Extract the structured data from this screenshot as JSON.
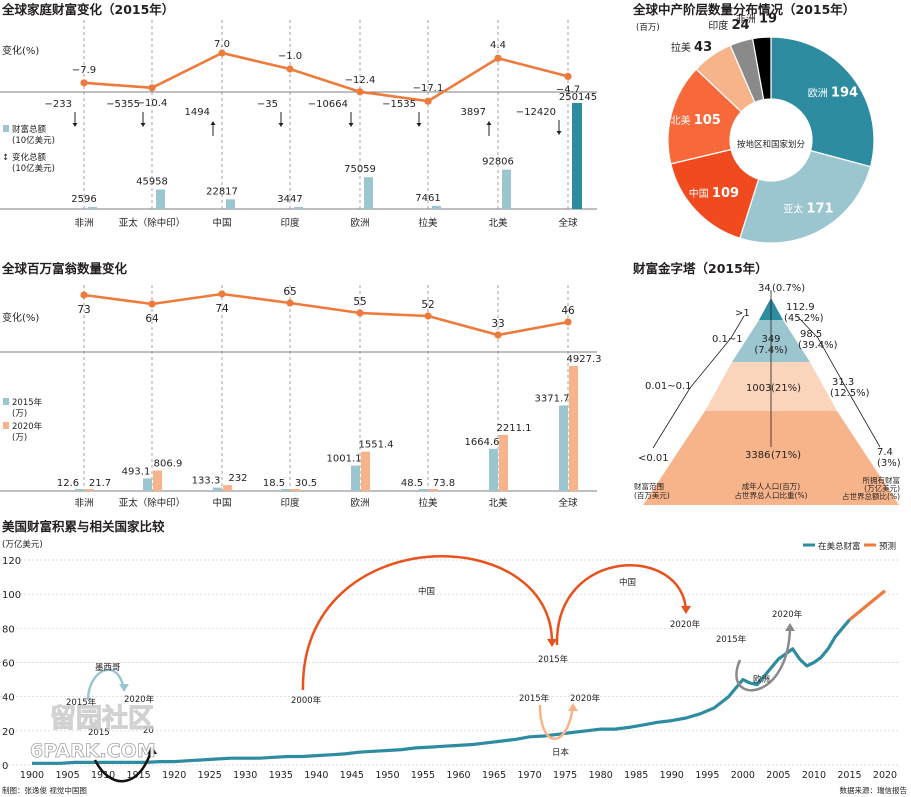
{
  "colors": {
    "orange": "#ee7a3b",
    "teal_light": "#9cc6cf",
    "teal_dark": "#2e8ca0",
    "peach": "#f7b48a",
    "dashed": "#8a8a8a",
    "text": "#231f20"
  },
  "chart_data": [
    {
      "id": "household-wealth",
      "type": "bar",
      "title": "全球家庭财富变化（2015年）",
      "categories": [
        "非洲",
        "亚太（除中印）",
        "中国",
        "印度",
        "欧洲",
        "拉美",
        "北美",
        "全球"
      ],
      "line_label": "变化(%)",
      "change_pct": [
        -7.9,
        -10.4,
        7.0,
        -1.0,
        -12.4,
        -17.1,
        4.4,
        -4.7
      ],
      "change_pct_text": [
        "−7.9",
        "−10.4",
        "7.0",
        "−1.0",
        "−12.4",
        "−17.1",
        "4.4",
        "−4.7"
      ],
      "wealth_total": [
        2596,
        45958,
        22817,
        3447,
        75059,
        7461,
        92806,
        250145
      ],
      "wealth_change": [
        -233,
        -5355,
        1494,
        -35,
        -10664,
        -1535,
        3897,
        -12420
      ],
      "wealth_change_text": [
        "−233",
        "−5355",
        "1494",
        "−35",
        "−10664",
        "−1535",
        "3897",
        "−12420"
      ],
      "legend": {
        "total": "财富总额",
        "total_unit": "(10亿美元)",
        "change": "变化总额",
        "change_unit": "(10亿美元)"
      }
    },
    {
      "id": "middle-class",
      "type": "pie",
      "title": "全球中产阶层数量分布情况（2015年）",
      "unit": "(百万)",
      "center_label": "按地区和国家划分",
      "slices": [
        {
          "label": "欧洲",
          "value": 194,
          "color": "#2e8ca0"
        },
        {
          "label": "亚太",
          "value": 171,
          "color": "#9cc6cf"
        },
        {
          "label": "中国",
          "value": 109,
          "color": "#f04a1e"
        },
        {
          "label": "北美",
          "value": 105,
          "color": "#f7693a"
        },
        {
          "label": "拉美",
          "value": 43,
          "color": "#f7b48a"
        },
        {
          "label": "印度",
          "value": 24,
          "color": "#8a8a8a"
        },
        {
          "label": "非洲",
          "value": 19,
          "color": "#000000"
        }
      ]
    },
    {
      "id": "millionaires",
      "type": "bar",
      "title": "全球百万富翁数量变化",
      "categories": [
        "非洲",
        "亚太（除中印）",
        "中国",
        "印度",
        "欧洲",
        "拉美",
        "北美",
        "全球"
      ],
      "line_label": "变化(%)",
      "change_pct": [
        73,
        64,
        74,
        65,
        55,
        52,
        33,
        46
      ],
      "series": [
        {
          "name": "2015年",
          "unit": "(万)",
          "values": [
            12.6,
            493.1,
            133.3,
            18.5,
            1001.1,
            48.5,
            1664.6,
            3371.7
          ],
          "labels": [
            "12.6",
            "493.1",
            "133.3",
            "18.5",
            "1001.1",
            "48.5",
            "1664.6",
            "3371.7"
          ]
        },
        {
          "name": "2020年",
          "unit": "(万)",
          "values": [
            21.7,
            806.9,
            232,
            30.5,
            1551.4,
            73.8,
            2211.1,
            4927.3
          ],
          "labels": [
            "21.7",
            "806.9",
            "232",
            "30.5",
            "1551.4",
            "73.8",
            "2211.1",
            "4927.3"
          ]
        }
      ]
    },
    {
      "id": "pyramid",
      "type": "table",
      "title": "财富金字塔（2015年）",
      "left_labels": [
        ">1",
        "0.1~1",
        "0.01~0.1",
        "<0.01"
      ],
      "inner_labels": [
        {
          "value": "34",
          "pct": "(0.7%)"
        },
        {
          "value": "349",
          "pct": "(7.4%)"
        },
        {
          "value": "1003",
          "pct": "(21%)"
        },
        {
          "value": "3386",
          "pct": "(71%)"
        }
      ],
      "right_labels": [
        {
          "value": "112.9",
          "pct": "(45.2%)"
        },
        {
          "value": "98.5",
          "pct": "(39.4%)"
        },
        {
          "value": "31.3",
          "pct": "(12.5%)"
        },
        {
          "value": "7.4",
          "pct": "(3%)"
        }
      ],
      "footer_left": [
        "财富范围",
        "(百万美元)"
      ],
      "footer_mid": [
        "成年人人口(百万)",
        "占世界总人口比重(%)"
      ],
      "footer_right": [
        "所拥有财富",
        "(万亿美元)",
        "占世界总额比(%)"
      ]
    },
    {
      "id": "us-wealth",
      "type": "line",
      "title": "美国财富积累与相关国家比较",
      "ylabel": "(万亿美元)",
      "ylim": [
        0,
        120
      ],
      "yticks": [
        0,
        20,
        40,
        60,
        80,
        100,
        120
      ],
      "xlim": [
        1900,
        2020
      ],
      "xticks": [
        1900,
        1905,
        1910,
        1915,
        1920,
        1925,
        1930,
        1935,
        1940,
        1945,
        1950,
        1955,
        1960,
        1965,
        1970,
        1975,
        1980,
        1985,
        1990,
        1995,
        2000,
        2005,
        2010,
        2015,
        2020
      ],
      "series": [
        {
          "name": "在美总财富",
          "color": "#2e8ca0",
          "x": [
            1900,
            1902,
            1904,
            1906,
            1908,
            1910,
            1912,
            1914,
            1916,
            1918,
            1920,
            1922,
            1924,
            1926,
            1928,
            1930,
            1932,
            1934,
            1936,
            1938,
            1940,
            1942,
            1944,
            1946,
            1948,
            1950,
            1952,
            1954,
            1956,
            1958,
            1960,
            1962,
            1964,
            1966,
            1968,
            1970,
            1972,
            1974,
            1976,
            1978,
            1980,
            1982,
            1984,
            1986,
            1988,
            1990,
            1992,
            1994,
            1996,
            1998,
            1999,
            2000,
            2001,
            2002,
            2003,
            2004,
            2005,
            2006,
            2007,
            2008,
            2009,
            2010,
            2011,
            2012,
            2013,
            2014,
            2015
          ],
          "values": [
            1,
            1,
            1,
            1.5,
            1.5,
            1.5,
            1.5,
            1.5,
            1.5,
            2,
            2,
            2.5,
            3,
            3.5,
            4,
            4,
            4,
            4.5,
            5,
            5,
            5.5,
            6,
            6.5,
            7.5,
            8,
            8.5,
            9,
            10,
            10.5,
            11,
            11.5,
            12,
            13,
            14,
            15,
            16.5,
            17,
            18,
            19,
            20,
            21,
            21,
            22,
            23.5,
            25,
            26,
            27.5,
            30,
            33.5,
            40,
            45,
            50,
            48,
            47,
            52,
            57,
            62,
            65,
            68,
            62,
            58,
            60,
            63,
            68,
            75,
            80,
            85
          ]
        },
        {
          "name": "预测",
          "color": "#ee7a3b",
          "x": [
            2015,
            2020
          ],
          "values": [
            85,
            102
          ]
        }
      ],
      "annotations": [
        {
          "text": "墨西哥"
        },
        {
          "text": "2015年"
        },
        {
          "text": "2020年"
        },
        {
          "text": "中国"
        },
        {
          "text": "2000年"
        },
        {
          "text": "2015年"
        },
        {
          "text": "中国"
        },
        {
          "text": "2020年"
        },
        {
          "text": "2015年"
        },
        {
          "text": "2020年"
        },
        {
          "text": "日本"
        },
        {
          "text": "2015年"
        },
        {
          "text": "2020年"
        },
        {
          "text": "欧洲"
        },
        {
          "text": "2015"
        },
        {
          "text": "20"
        }
      ]
    }
  ],
  "footer": {
    "left": "制图：张逸俊  视觉中国图",
    "right": "数据来源：瑞信报告"
  },
  "watermark": {
    "text": "留园社区",
    "sub": "6PARK.COM"
  }
}
